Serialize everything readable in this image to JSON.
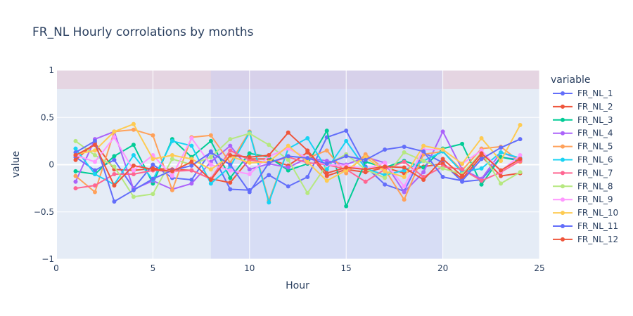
{
  "chart_data": {
    "type": "line",
    "title": "FR_NL Hourly corrolations by months",
    "xlabel": "Hour",
    "ylabel": "value",
    "xlim": [
      0,
      25
    ],
    "ylim": [
      -1,
      1
    ],
    "xticks": [
      0,
      5,
      10,
      15,
      20,
      25
    ],
    "yticks": [
      -1,
      -0.5,
      0,
      0.5,
      1
    ],
    "ytick_labels": [
      "−1",
      "−0.5",
      "0",
      "0.5",
      "1"
    ],
    "grid": true,
    "legend_title": "variable",
    "legend_position": "right",
    "bands": [
      {
        "axis": "y",
        "from": 0.8,
        "to": 1.0,
        "color": "#e6a0b4",
        "opacity": 0.3
      },
      {
        "axis": "x",
        "from": 8,
        "to": 20,
        "color": "#c6ccf5",
        "opacity": 0.45
      }
    ],
    "x": [
      1,
      2,
      3,
      4,
      5,
      6,
      7,
      8,
      9,
      10,
      11,
      12,
      13,
      14,
      15,
      16,
      17,
      18,
      19,
      20,
      21,
      22,
      23,
      24
    ],
    "series": [
      {
        "name": "FR_NL_1",
        "color": "#636efa",
        "values": [
          0.08,
          -0.06,
          0.05,
          -0.25,
          0.0,
          -0.14,
          -0.16,
          0.14,
          -0.26,
          -0.27,
          -0.11,
          -0.23,
          -0.13,
          0.29,
          0.36,
          -0.02,
          -0.21,
          -0.28,
          0.13,
          0.02,
          -0.18,
          -0.16,
          0.08,
          0.05
        ]
      },
      {
        "name": "FR_NL_2",
        "color": "#ef553b",
        "values": [
          0.05,
          0.23,
          -0.05,
          -0.06,
          -0.04,
          -0.05,
          -0.06,
          -0.15,
          -0.19,
          0.06,
          0.06,
          -0.01,
          0.13,
          -0.12,
          -0.05,
          -0.08,
          -0.03,
          -0.09,
          -0.02,
          0.01,
          -0.15,
          0.09,
          -0.12,
          -0.09
        ]
      },
      {
        "name": "FR_NL_3",
        "color": "#00cc96",
        "values": [
          -0.07,
          -0.1,
          0.09,
          0.21,
          -0.2,
          0.27,
          0.08,
          0.25,
          -0.14,
          0.12,
          0.08,
          -0.06,
          0.01,
          0.36,
          -0.44,
          0.03,
          -0.03,
          0.04,
          -0.03,
          0.17,
          0.22,
          -0.21,
          0.08,
          0.04
        ]
      },
      {
        "name": "FR_NL_4",
        "color": "#ab63fa",
        "values": [
          -0.18,
          0.27,
          0.35,
          -0.26,
          -0.17,
          -0.26,
          -0.2,
          0.03,
          0.2,
          -0.05,
          0.01,
          -0.03,
          0.07,
          0.04,
          0.0,
          0.08,
          0.02,
          -0.29,
          -0.08,
          0.35,
          -0.05,
          -0.15,
          0.13,
          0.06
        ]
      },
      {
        "name": "FR_NL_5",
        "color": "#ffa15a",
        "values": [
          -0.12,
          -0.29,
          0.35,
          0.37,
          0.31,
          -0.27,
          0.29,
          0.31,
          0.02,
          0.35,
          -0.38,
          0.17,
          0.07,
          0.15,
          -0.09,
          0.11,
          -0.05,
          -0.37,
          0.11,
          0.14,
          -0.06,
          0.17,
          0.19,
          0.03
        ]
      },
      {
        "name": "FR_NL_6",
        "color": "#19d3f3",
        "values": [
          0.17,
          -0.1,
          -0.21,
          0.1,
          -0.16,
          0.25,
          0.2,
          -0.2,
          -0.02,
          0.34,
          -0.4,
          0.17,
          0.28,
          -0.05,
          0.25,
          -0.04,
          -0.11,
          -0.06,
          0.04,
          0.14,
          -0.08,
          -0.04,
          0.13,
          0.07
        ]
      },
      {
        "name": "FR_NL_7",
        "color": "#ff6692",
        "values": [
          -0.25,
          -0.22,
          -0.1,
          -0.1,
          -0.06,
          -0.07,
          -0.06,
          -0.15,
          0.15,
          0.05,
          0.02,
          0.08,
          0.02,
          0.0,
          -0.05,
          -0.18,
          -0.05,
          0.03,
          -0.13,
          -0.02,
          -0.05,
          -0.17,
          -0.08,
          0.04
        ]
      },
      {
        "name": "FR_NL_8",
        "color": "#b6e880",
        "values": [
          0.25,
          0.1,
          -0.02,
          -0.34,
          -0.31,
          0.06,
          0.0,
          0.08,
          0.27,
          0.33,
          0.21,
          0.05,
          -0.3,
          0.0,
          0.11,
          -0.05,
          -0.14,
          0.13,
          0.04,
          -0.04,
          -0.1,
          0.13,
          -0.2,
          -0.08
        ]
      },
      {
        "name": "FR_NL_9",
        "color": "#ff97ff",
        "values": [
          0.1,
          0.03,
          0.29,
          -0.06,
          0.1,
          -0.12,
          0.28,
          0.0,
          -0.06,
          -0.1,
          0.09,
          0.17,
          0.07,
          0.0,
          -0.01,
          -0.05,
          0.02,
          -0.23,
          0.16,
          0.16,
          0.01,
          0.15,
          -0.07,
          0.1
        ]
      },
      {
        "name": "FR_NL_10",
        "color": "#fecb52",
        "values": [
          0.11,
          0.15,
          0.35,
          0.43,
          0.06,
          0.1,
          0.06,
          -0.05,
          0.09,
          0.02,
          0.03,
          0.2,
          0.03,
          -0.17,
          -0.06,
          0.08,
          -0.07,
          -0.13,
          0.2,
          0.16,
          0.01,
          0.28,
          0.04,
          0.42
        ]
      },
      {
        "name": "FR_NL_11",
        "color": "#636efa",
        "values": [
          0.13,
          0.25,
          -0.39,
          -0.27,
          -0.15,
          -0.06,
          -0.01,
          0.13,
          0.0,
          -0.29,
          0.02,
          0.09,
          0.07,
          0.01,
          0.09,
          0.05,
          0.16,
          0.19,
          0.14,
          -0.13,
          -0.17,
          0.06,
          0.18,
          0.27
        ]
      },
      {
        "name": "FR_NL_12",
        "color": "#ef553b",
        "values": [
          0.1,
          0.21,
          -0.22,
          -0.01,
          -0.05,
          -0.07,
          0.03,
          -0.16,
          0.1,
          0.08,
          0.1,
          0.34,
          0.15,
          -0.09,
          -0.03,
          -0.05,
          -0.02,
          -0.03,
          -0.16,
          0.06,
          -0.12,
          0.12,
          -0.06,
          0.06
        ]
      }
    ]
  }
}
